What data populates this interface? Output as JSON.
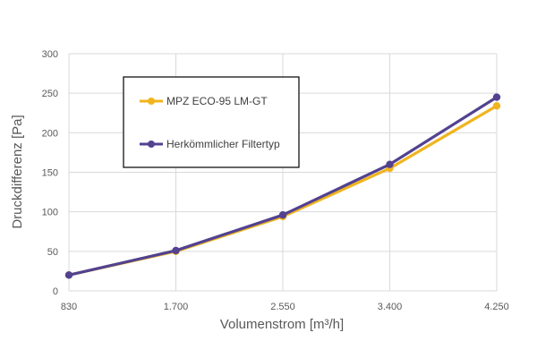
{
  "chart_data": {
    "type": "line",
    "x": [
      "830",
      "1.700",
      "2.550",
      "3.400",
      "4.250"
    ],
    "xlabel": "Volumenstrom [m³/h]",
    "ylabel": "Druckdifferenz [Pa]",
    "ylim": [
      0,
      300
    ],
    "yticks": [
      "0",
      "50",
      "100",
      "150",
      "200",
      "250",
      "300"
    ],
    "grid": true,
    "legend_position": "top-left",
    "series": [
      {
        "name": "MPZ ECO-95 LM-GT",
        "values": [
          20,
          50,
          94,
          155,
          234
        ],
        "color": "#F0B41E"
      },
      {
        "name": "Herkömmlicher Filtertyp",
        "values": [
          20,
          51,
          96,
          160,
          245
        ],
        "color": "#524290"
      }
    ]
  }
}
